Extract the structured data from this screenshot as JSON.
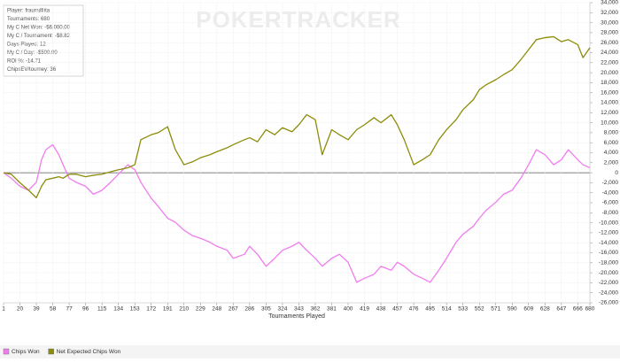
{
  "chart_data": {
    "type": "line",
    "watermark": "POKERTRACKER",
    "x_label": "Tournaments Played",
    "info_box": [
      "Player: fraum@ita",
      "Tournaments: 680",
      "My C Net Won: -$6,000.00",
      "My C / Tournament: -$8.82",
      "Days Played: 12",
      "My C / Day: -$500.00",
      "ROI %: -14.71",
      "ChipsEV/tourney: 36"
    ],
    "grid": true,
    "xlim": [
      1,
      680
    ],
    "xticks": [
      1,
      20,
      39,
      58,
      77,
      96,
      115,
      134,
      153,
      172,
      191,
      210,
      229,
      248,
      267,
      286,
      305,
      324,
      343,
      362,
      381,
      400,
      419,
      438,
      457,
      476,
      495,
      514,
      533,
      552,
      571,
      590,
      609,
      628,
      647,
      666,
      680
    ],
    "ylim": [
      -26000,
      34000
    ],
    "yticks": [
      {
        "value": -26000,
        "label": "-26,000"
      },
      {
        "value": -24000,
        "label": "-24,000"
      },
      {
        "value": -22000,
        "label": "-22,000"
      },
      {
        "value": -20000,
        "label": "-20,000"
      },
      {
        "value": -18000,
        "label": "-18,000"
      },
      {
        "value": -16000,
        "label": "-16,000"
      },
      {
        "value": -14000,
        "label": "-14,000"
      },
      {
        "value": -12000,
        "label": "-12,000"
      },
      {
        "value": -10000,
        "label": "-10,000"
      },
      {
        "value": -8000,
        "label": "-8,000"
      },
      {
        "value": -6000,
        "label": "-6,000"
      },
      {
        "value": -4000,
        "label": "-4,000"
      },
      {
        "value": -2000,
        "label": "-2,000"
      },
      0,
      {
        "value": 2000,
        "label": "2,000"
      },
      {
        "value": 4000,
        "label": "4,000"
      },
      {
        "value": 6000,
        "label": "6,000"
      },
      {
        "value": 8000,
        "label": "8,000"
      },
      {
        "value": 10000,
        "label": "10,000"
      },
      {
        "value": 12000,
        "label": "12,000"
      },
      {
        "value": 14000,
        "label": "14,000"
      },
      {
        "value": 16000,
        "label": "16,000"
      },
      {
        "value": 18000,
        "label": "18,000"
      },
      {
        "value": 20000,
        "label": "20,000"
      },
      {
        "value": 22000,
        "label": "22,000"
      },
      {
        "value": 24000,
        "label": "24,000"
      },
      {
        "value": 26000,
        "label": "26,000"
      },
      {
        "value": 28000,
        "label": "28,000"
      },
      {
        "value": 30000,
        "label": "30,000"
      },
      {
        "value": 32000,
        "label": "32,000"
      },
      {
        "value": 34000,
        "label": "34,000"
      }
    ],
    "x": [
      1,
      10,
      20,
      30,
      39,
      45,
      50,
      58,
      65,
      70,
      77,
      85,
      96,
      105,
      115,
      125,
      134,
      145,
      153,
      160,
      172,
      180,
      191,
      200,
      210,
      220,
      229,
      240,
      248,
      260,
      267,
      280,
      286,
      295,
      305,
      315,
      324,
      335,
      343,
      352,
      362,
      370,
      381,
      390,
      400,
      410,
      419,
      430,
      438,
      450,
      457,
      465,
      476,
      486,
      495,
      505,
      514,
      525,
      533,
      545,
      552,
      560,
      571,
      580,
      590,
      600,
      609,
      618,
      628,
      638,
      647,
      655,
      666,
      672,
      680
    ],
    "series": [
      {
        "name": "Chips Won",
        "color": "#f07cf0",
        "values": [
          0,
          -1100,
          -2700,
          -3500,
          -1900,
          2600,
          4600,
          5600,
          3600,
          1600,
          -1100,
          -1900,
          -2700,
          -4300,
          -3500,
          -1900,
          -300,
          1600,
          600,
          -1900,
          -5100,
          -6700,
          -9100,
          -9900,
          -11500,
          -12600,
          -13100,
          -13900,
          -14700,
          -15500,
          -17100,
          -16300,
          -14700,
          -16300,
          -18700,
          -17100,
          -15500,
          -14700,
          -13900,
          -15500,
          -17100,
          -18700,
          -17100,
          -16300,
          -17900,
          -21900,
          -21100,
          -20300,
          -18700,
          -19500,
          -17900,
          -18700,
          -20300,
          -21100,
          -21900,
          -19500,
          -17100,
          -13900,
          -12300,
          -10700,
          -9100,
          -7500,
          -5900,
          -4300,
          -3500,
          -1100,
          1600,
          4600,
          3600,
          1600,
          2600,
          4600,
          2600,
          1600,
          1000
        ]
      },
      {
        "name": "Net Expected Chips Won",
        "color": "#8c8c0a",
        "values": [
          0,
          -300,
          -2000,
          -3500,
          -5000,
          -2700,
          -1400,
          -1100,
          -800,
          -1100,
          -300,
          -300,
          -800,
          -500,
          -300,
          200,
          600,
          1000,
          1600,
          6600,
          7600,
          8000,
          9200,
          4600,
          1600,
          2200,
          3000,
          3600,
          4200,
          5000,
          5600,
          6600,
          7000,
          6200,
          8600,
          7600,
          9000,
          8200,
          9600,
          11600,
          10600,
          3600,
          8600,
          7600,
          6600,
          8600,
          9600,
          11000,
          10000,
          11600,
          9600,
          6600,
          1600,
          2600,
          3600,
          6600,
          8600,
          10600,
          12600,
          14600,
          16600,
          17600,
          18600,
          19600,
          20600,
          22600,
          24600,
          26600,
          27000,
          27200,
          26200,
          26600,
          25600,
          23000,
          25000
        ]
      }
    ]
  }
}
